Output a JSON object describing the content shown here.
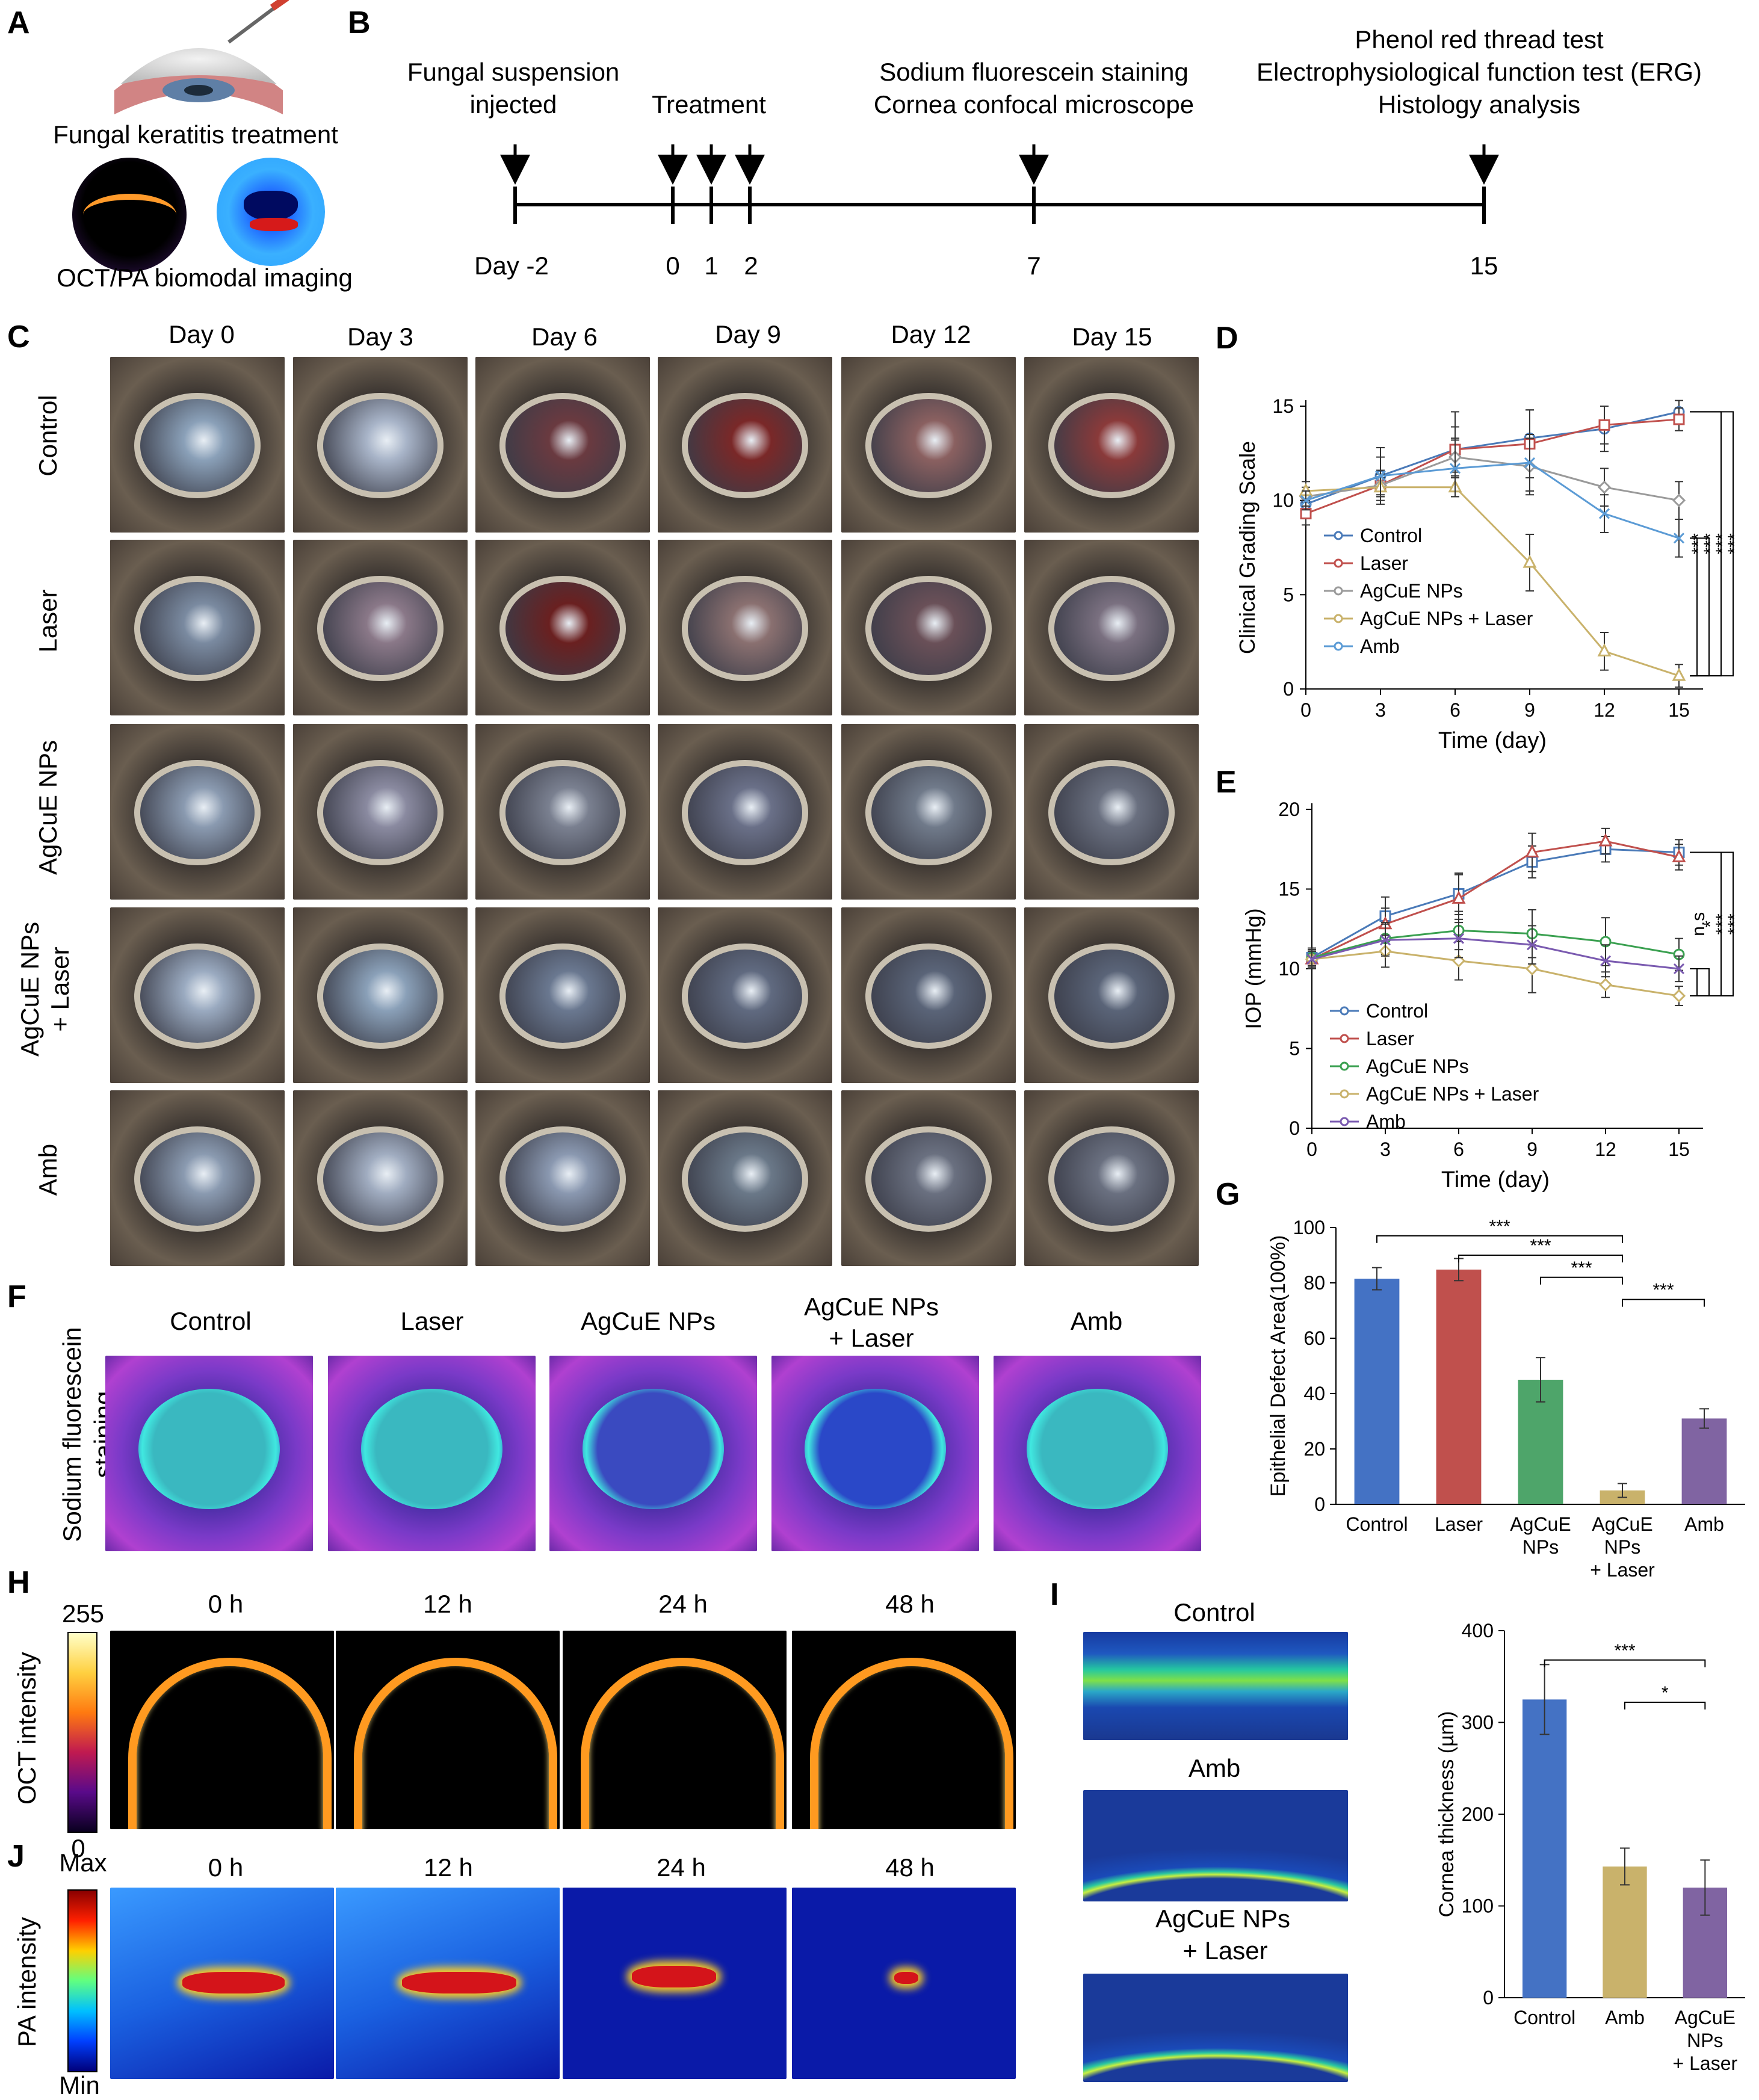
{
  "panels": {
    "A": "A",
    "B": "B",
    "C": "C",
    "D": "D",
    "E": "E",
    "F": "F",
    "G": "G",
    "H": "H",
    "I": "I",
    "J": "J"
  },
  "panelA": {
    "caption1": "Fungal keratitis treatment",
    "caption2": "OCT/PA biomodal imaging"
  },
  "timeline": {
    "events": [
      {
        "line1": "Fungal suspension",
        "line2": "injected"
      },
      {
        "line1": "Treatment",
        "line2": ""
      },
      {
        "line1": "Sodium fluorescein staining",
        "line2": "Cornea confocal microscope"
      },
      {
        "line1": "Phenol red thread test",
        "line2": "Electrophysiological function test (ERG)",
        "line3": "Histology analysis"
      }
    ],
    "days": [
      "Day -2",
      "0",
      "1",
      "2",
      "7",
      "15"
    ]
  },
  "panelC": {
    "columns": [
      "Day 0",
      "Day 3",
      "Day 6",
      "Day 9",
      "Day 12",
      "Day 15"
    ],
    "rows": [
      "Control",
      "Laser",
      "AgCuE NPs",
      "AgCuE NPs",
      "+ Laser",
      "Amb"
    ]
  },
  "panelF": {
    "row_label1": "Sodium fluorescein",
    "row_label2": "staining",
    "columns": [
      "Control",
      "Laser",
      "AgCuE NPs",
      "AgCuE NPs",
      "+ Laser",
      "Amb"
    ]
  },
  "panelH": {
    "cb_max": "255",
    "cb_min": "0",
    "cb_label": "OCT intensity",
    "times": [
      "0 h",
      "12 h",
      "24 h",
      "48 h"
    ]
  },
  "panelJ": {
    "cb_max": "Max",
    "cb_min": "Min",
    "cb_label": "PA intensity",
    "times": [
      "0 h",
      "12 h",
      "24 h",
      "48 h"
    ]
  },
  "panelI": {
    "labels": [
      "Control",
      "Amb",
      "AgCuE NPs",
      "+ Laser"
    ]
  },
  "colors": {
    "control": "#4a7ab8",
    "laser": "#c0504d",
    "agcue": "#9a9a9a",
    "agcue_laser": "#c9b26b",
    "amb": "#5b9bd5",
    "barBlue": "#4472c4",
    "barRed": "#c0504d",
    "barGreen": "#4ea56a",
    "barTan": "#c9b26b",
    "barPurple": "#8064a2"
  },
  "chart_data": [
    {
      "id": "D",
      "type": "line",
      "xlabel": "Time (day)",
      "ylabel": "Clinical Grading Scale",
      "x": [
        0,
        3,
        6,
        9,
        12,
        15
      ],
      "xlim": [
        0,
        15
      ],
      "ylim": [
        0,
        15
      ],
      "xticks": [
        "0",
        "3",
        "6",
        "9",
        "12",
        "15"
      ],
      "yticks": [
        "0",
        "5",
        "10",
        "15"
      ],
      "series": [
        {
          "name": "Control",
          "values": [
            9.8,
            11.3,
            12.7,
            13.3,
            13.8,
            14.7
          ],
          "err": [
            0.6,
            1.5,
            2.0,
            1.5,
            1.2,
            0.6
          ]
        },
        {
          "name": "Laser",
          "values": [
            9.3,
            10.8,
            12.7,
            13.0,
            14.0,
            14.3
          ],
          "err": [
            0.6,
            0.8,
            1.2,
            1.8,
            1.0,
            0.6
          ]
        },
        {
          "name": "AgCuE NPs",
          "values": [
            10.2,
            10.8,
            12.3,
            11.8,
            10.7,
            10.0
          ],
          "err": [
            0.5,
            0.6,
            1.0,
            1.5,
            1.0,
            1.0
          ]
        },
        {
          "name": "AgCuE NPs + Laser",
          "values": [
            10.5,
            10.7,
            10.7,
            6.7,
            2.0,
            0.7
          ],
          "err": [
            0.5,
            0.5,
            0.5,
            1.5,
            1.0,
            0.6
          ]
        },
        {
          "name": "Amb",
          "values": [
            10.0,
            11.3,
            11.7,
            12.0,
            9.3,
            8.0
          ],
          "err": [
            0.5,
            1.0,
            1.5,
            1.5,
            1.0,
            1.0
          ]
        }
      ],
      "significance": [
        "***",
        "***",
        "***",
        "***"
      ]
    },
    {
      "id": "E",
      "type": "line",
      "xlabel": "Time (day)",
      "ylabel": "IOP (mmHg)",
      "x": [
        0,
        3,
        6,
        9,
        12,
        15
      ],
      "xlim": [
        0,
        15
      ],
      "ylim": [
        0,
        20
      ],
      "xticks": [
        "0",
        "3",
        "6",
        "9",
        "12",
        "15"
      ],
      "yticks": [
        "0",
        "5",
        "10",
        "15",
        "20"
      ],
      "series": [
        {
          "name": "Control",
          "values": [
            10.7,
            13.3,
            14.7,
            16.7,
            17.5,
            17.3
          ],
          "err": [
            0.6,
            1.2,
            1.3,
            1.0,
            0.8,
            0.8
          ]
        },
        {
          "name": "Laser",
          "values": [
            10.6,
            12.8,
            14.4,
            17.3,
            18.0,
            17.0
          ],
          "err": [
            0.6,
            1.0,
            1.5,
            1.2,
            0.8,
            0.8
          ]
        },
        {
          "name": "AgCuE NPs",
          "values": [
            10.7,
            11.9,
            12.4,
            12.2,
            11.7,
            10.9
          ],
          "err": [
            0.5,
            1.0,
            1.2,
            1.5,
            1.5,
            1.0
          ]
        },
        {
          "name": "AgCuE NPs + Laser",
          "values": [
            10.6,
            11.1,
            10.5,
            10.0,
            9.0,
            8.3
          ],
          "err": [
            0.5,
            1.0,
            1.2,
            1.5,
            0.8,
            0.6
          ]
        },
        {
          "name": "Amb",
          "values": [
            10.6,
            11.8,
            11.9,
            11.5,
            10.5,
            10.0
          ],
          "err": [
            0.5,
            1.0,
            1.2,
            1.2,
            1.0,
            0.8
          ]
        }
      ],
      "significance": [
        "n.s",
        "*",
        "***",
        "***"
      ]
    },
    {
      "id": "G",
      "type": "bar",
      "ylabel": "Epithelial Defect Area(100%)",
      "ylim": [
        0,
        100
      ],
      "yticks": [
        "0",
        "20",
        "40",
        "60",
        "80",
        "100"
      ],
      "categories": [
        [
          "Control"
        ],
        [
          "Laser"
        ],
        [
          "AgCuE",
          "NPs"
        ],
        [
          "AgCuE",
          "NPs",
          "+ Laser"
        ],
        [
          "Amb"
        ]
      ],
      "values": [
        81.5,
        84.8,
        45.0,
        5.0,
        31.0
      ],
      "err": [
        4.0,
        4.0,
        8.0,
        2.5,
        3.5
      ],
      "significance": [
        "***",
        "***",
        "***",
        "***"
      ]
    },
    {
      "id": "I",
      "type": "bar",
      "ylabel": "Cornea thickness (µm)",
      "ylim": [
        0,
        400
      ],
      "yticks": [
        "0",
        "100",
        "200",
        "300",
        "400"
      ],
      "categories": [
        [
          "Control"
        ],
        [
          "Amb"
        ],
        [
          "AgCuE",
          "NPs",
          "+ Laser"
        ]
      ],
      "values": [
        325,
        143,
        120
      ],
      "err": [
        38,
        20,
        30
      ],
      "significance": [
        "***",
        "*"
      ]
    }
  ]
}
